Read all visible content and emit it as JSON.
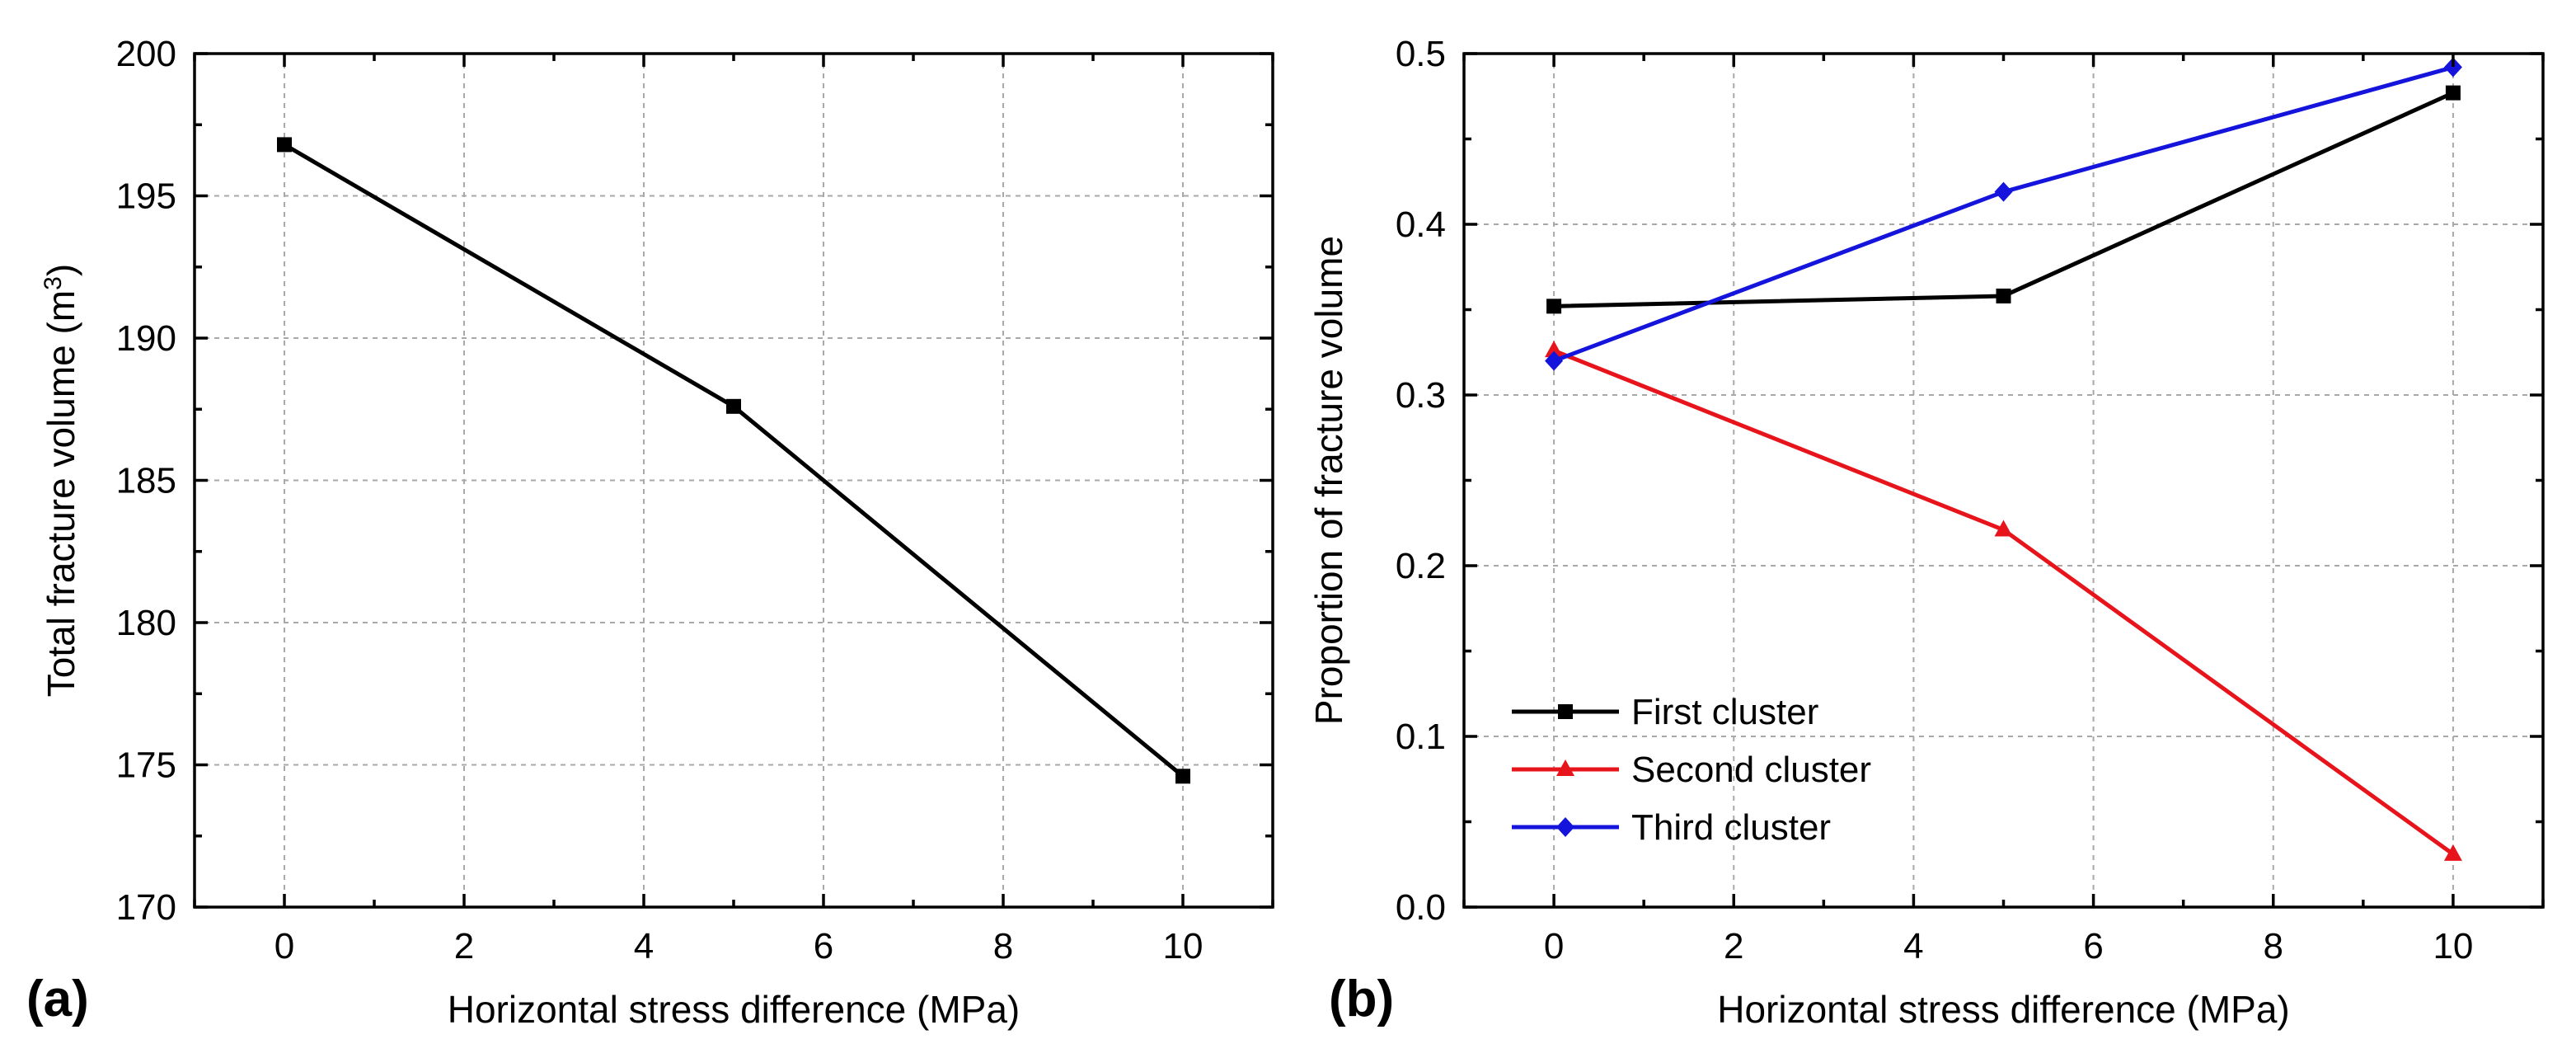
{
  "chart_data": [
    {
      "id": "a",
      "panel_label": "(a)",
      "type": "line",
      "xlabel": "Horizontal stress difference (MPa)",
      "ylabel": "Total fracture volume (m",
      "ylabel_superscript": "3",
      "ylabel_suffix": ")",
      "xlim": [
        -1,
        11
      ],
      "ylim": [
        170,
        200
      ],
      "xticks": [
        0,
        2,
        4,
        6,
        8,
        10
      ],
      "xtick_labels": [
        "0",
        "2",
        "4",
        "6",
        "8",
        "10"
      ],
      "yticks": [
        170,
        175,
        180,
        185,
        190,
        195,
        200
      ],
      "ytick_labels": [
        "170",
        "175",
        "180",
        "185",
        "190",
        "195",
        "200"
      ],
      "grid": true,
      "series": [
        {
          "name": "Total fracture volume",
          "x": [
            0,
            5,
            10
          ],
          "values": [
            196.8,
            187.6,
            174.6
          ],
          "color": "#000000",
          "marker": "square"
        }
      ]
    },
    {
      "id": "b",
      "panel_label": "(b)",
      "type": "line",
      "xlabel": "Horizontal stress difference (MPa)",
      "ylabel": "Proportion of fracture volume",
      "xlim": [
        -1,
        11
      ],
      "ylim": [
        0.0,
        0.5
      ],
      "xticks": [
        0,
        2,
        4,
        6,
        8,
        10
      ],
      "xtick_labels": [
        "0",
        "2",
        "4",
        "6",
        "8",
        "10"
      ],
      "yticks": [
        0.0,
        0.1,
        0.2,
        0.3,
        0.4,
        0.5
      ],
      "ytick_labels": [
        "0.0",
        "0.1",
        "0.2",
        "0.3",
        "0.4",
        "0.5"
      ],
      "grid": true,
      "legend_position": "bottom-left",
      "series": [
        {
          "name": "First cluster",
          "x": [
            0,
            5,
            10
          ],
          "values": [
            0.352,
            0.358,
            0.477
          ],
          "color": "#000000",
          "marker": "square"
        },
        {
          "name": "Second cluster",
          "x": [
            0,
            5,
            10
          ],
          "values": [
            0.326,
            0.221,
            0.031
          ],
          "color": "#e8141c",
          "marker": "triangle"
        },
        {
          "name": "Third cluster",
          "x": [
            0,
            5,
            10
          ],
          "values": [
            0.32,
            0.419,
            0.492
          ],
          "color": "#1414dc",
          "marker": "diamond"
        }
      ]
    }
  ]
}
